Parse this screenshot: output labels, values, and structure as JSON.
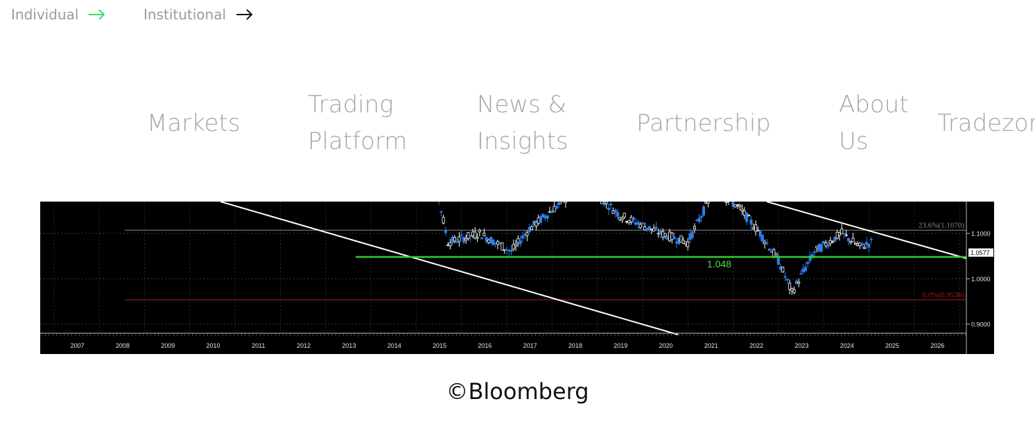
{
  "segment_switch": {
    "individual_label": "Individual",
    "institutional_label": "Institutional",
    "individual_arrow_color": "#3ddc64",
    "institutional_arrow_color": "#111111"
  },
  "nav": {
    "items": [
      {
        "label": "Markets"
      },
      {
        "label": "Trading\nPlatform"
      },
      {
        "label": "News &\nInsights"
      },
      {
        "label": "Partnership"
      },
      {
        "label": "About\nUs"
      },
      {
        "label": "Tradezon"
      }
    ]
  },
  "chart_data": {
    "type": "candlestick",
    "x_axis_labels": [
      "2007",
      "2008",
      "2009",
      "2010",
      "2011",
      "2012",
      "2013",
      "2014",
      "2015",
      "2016",
      "2017",
      "2018",
      "2019",
      "2020",
      "2021",
      "2022",
      "2023",
      "2024",
      "2025",
      "2026"
    ],
    "y_axis_labels": [
      "1.1000",
      "1.0000",
      "0.9000"
    ],
    "ylim": [
      0.88,
      1.17
    ],
    "current_price_label": "1.0577",
    "support_label": "1.048",
    "support_value": 1.048,
    "fib_levels": [
      {
        "label": "23.6%(1.1070)",
        "value": 1.107
      },
      {
        "label": "0.0%(0.9536)",
        "value": 0.9536
      }
    ],
    "colors": {
      "background": "#000000",
      "support": "#2bd12b",
      "fib_top": "#8c8c8c",
      "fib_bottom": "#b01a1a",
      "candle_up": "#ffffff",
      "candle_down": "#2f7fe8",
      "trendline": "#ffffff"
    }
  },
  "credit": {
    "text": "©Bloomberg"
  }
}
